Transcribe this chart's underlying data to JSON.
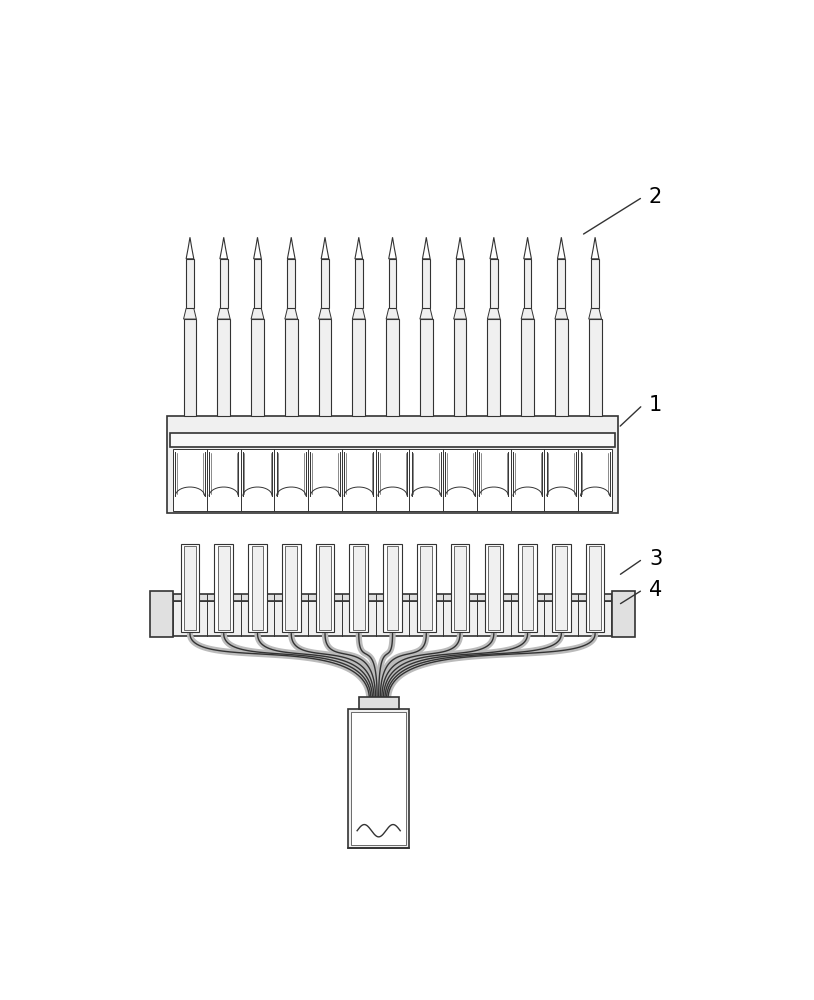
{
  "background_color": "#ffffff",
  "line_color": "#333333",
  "lw_main": 1.2,
  "lw_thin": 0.7,
  "fill_white": "#ffffff",
  "fill_light": "#f0f0f0",
  "fill_med": "#e0e0e0",
  "fill_dark": "#cccccc",
  "n_pins": 13,
  "label_1": "1",
  "label_2": "2",
  "label_3": "3",
  "label_4": "4",
  "label_fontsize": 15
}
